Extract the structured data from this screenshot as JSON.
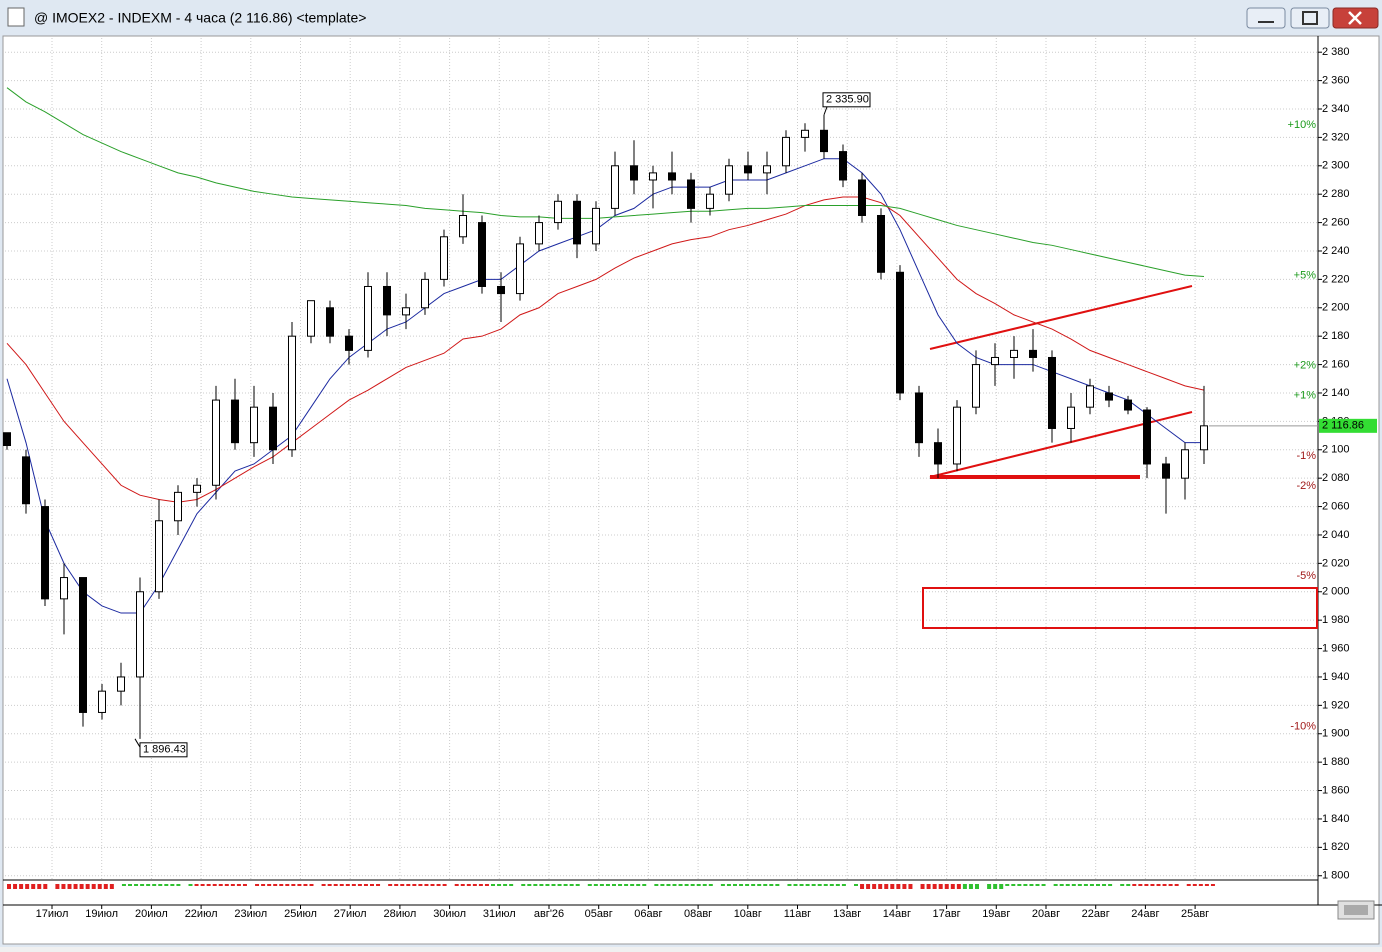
{
  "window": {
    "title": "@ IMOEX2 - INDEXM - 4 часа (2 116.86) <template>"
  },
  "chart_data": {
    "type": "candlestick",
    "candles": [
      [
        2112,
        2112,
        2100,
        2103
      ],
      [
        2095,
        2100,
        2055,
        2062
      ],
      [
        2060,
        2065,
        1990,
        1995
      ],
      [
        1995,
        2020,
        1970,
        2010
      ],
      [
        2010,
        2010,
        1905,
        1915
      ],
      [
        1915,
        1935,
        1910,
        1930
      ],
      [
        1930,
        1950,
        1920,
        1940
      ],
      [
        1940,
        2010,
        1896.43,
        2000
      ],
      [
        2000,
        2065,
        1995,
        2050
      ],
      [
        2050,
        2075,
        2040,
        2070
      ],
      [
        2070,
        2080,
        2060,
        2075
      ],
      [
        2075,
        2145,
        2065,
        2135
      ],
      [
        2135,
        2150,
        2100,
        2105
      ],
      [
        2105,
        2145,
        2095,
        2130
      ],
      [
        2130,
        2140,
        2090,
        2100
      ],
      [
        2100,
        2190,
        2095,
        2180
      ],
      [
        2180,
        2205,
        2175,
        2205
      ],
      [
        2200,
        2205,
        2175,
        2180
      ],
      [
        2180,
        2185,
        2160,
        2170
      ],
      [
        2170,
        2225,
        2165,
        2215
      ],
      [
        2215,
        2225,
        2180,
        2195
      ],
      [
        2195,
        2210,
        2185,
        2200
      ],
      [
        2200,
        2225,
        2195,
        2220
      ],
      [
        2220,
        2255,
        2215,
        2250
      ],
      [
        2250,
        2280,
        2245,
        2265
      ],
      [
        2260,
        2265,
        2210,
        2215
      ],
      [
        2215,
        2225,
        2190,
        2210
      ],
      [
        2210,
        2250,
        2205,
        2245
      ],
      [
        2245,
        2265,
        2240,
        2260
      ],
      [
        2260,
        2280,
        2255,
        2275
      ],
      [
        2275,
        2280,
        2235,
        2245
      ],
      [
        2245,
        2275,
        2240,
        2270
      ],
      [
        2270,
        2310,
        2265,
        2300
      ],
      [
        2300,
        2318,
        2280,
        2290
      ],
      [
        2290,
        2300,
        2270,
        2295
      ],
      [
        2295,
        2310,
        2280,
        2290
      ],
      [
        2290,
        2295,
        2260,
        2270
      ],
      [
        2270,
        2285,
        2265,
        2280
      ],
      [
        2280,
        2305,
        2275,
        2300
      ],
      [
        2300,
        2310,
        2290,
        2295
      ],
      [
        2295,
        2310,
        2280,
        2300
      ],
      [
        2300,
        2325,
        2295,
        2320
      ],
      [
        2320,
        2330,
        2310,
        2325
      ],
      [
        2325,
        2335.9,
        2305,
        2310
      ],
      [
        2310,
        2315,
        2285,
        2290
      ],
      [
        2290,
        2295,
        2260,
        2265
      ],
      [
        2265,
        2270,
        2220,
        2225
      ],
      [
        2225,
        2230,
        2135,
        2140
      ],
      [
        2140,
        2145,
        2095,
        2105
      ],
      [
        2105,
        2115,
        2080,
        2090
      ],
      [
        2090,
        2135,
        2085,
        2130
      ],
      [
        2130,
        2170,
        2125,
        2160
      ],
      [
        2160,
        2175,
        2145,
        2165
      ],
      [
        2165,
        2180,
        2150,
        2170
      ],
      [
        2170,
        2185,
        2155,
        2165
      ],
      [
        2165,
        2170,
        2105,
        2115
      ],
      [
        2115,
        2140,
        2105,
        2130
      ],
      [
        2130,
        2150,
        2125,
        2145
      ],
      [
        2140,
        2145,
        2130,
        2135
      ],
      [
        2135,
        2138,
        2125,
        2128
      ],
      [
        2128,
        2130,
        2080,
        2090
      ],
      [
        2090,
        2095,
        2055,
        2080
      ],
      [
        2080,
        2105,
        2065,
        2100
      ],
      [
        2100,
        2145,
        2090,
        2116.86
      ]
    ],
    "series": [
      {
        "color": "#1c2aa0",
        "values": [
          2150,
          2105,
          2050,
          2020,
          2000,
          1990,
          1985,
          1985,
          2005,
          2030,
          2055,
          2070,
          2085,
          2090,
          2100,
          2110,
          2130,
          2150,
          2165,
          2175,
          2185,
          2190,
          2200,
          2210,
          2215,
          2220,
          2220,
          2230,
          2240,
          2245,
          2250,
          2255,
          2265,
          2270,
          2280,
          2285,
          2285,
          2285,
          2290,
          2290,
          2290,
          2295,
          2300,
          2305,
          2305,
          2295,
          2280,
          2255,
          2225,
          2195,
          2175,
          2165,
          2160,
          2160,
          2160,
          2155,
          2150,
          2145,
          2140,
          2135,
          2125,
          2115,
          2105,
          2105
        ]
      },
      {
        "color": "#d01818",
        "values": [
          2175,
          2160,
          2140,
          2120,
          2105,
          2090,
          2075,
          2068,
          2065,
          2063,
          2065,
          2072,
          2080,
          2088,
          2095,
          2105,
          2115,
          2125,
          2135,
          2142,
          2150,
          2158,
          2163,
          2168,
          2178,
          2180,
          2185,
          2195,
          2200,
          2210,
          2215,
          2220,
          2228,
          2235,
          2240,
          2245,
          2248,
          2250,
          2255,
          2258,
          2262,
          2266,
          2272,
          2276,
          2278,
          2278,
          2274,
          2265,
          2250,
          2235,
          2220,
          2210,
          2203,
          2195,
          2190,
          2185,
          2178,
          2170,
          2165,
          2160,
          2155,
          2150,
          2145,
          2142
        ]
      },
      {
        "color": "#2aa02a",
        "values": [
          2355,
          2345,
          2338,
          2330,
          2322,
          2316,
          2310,
          2305,
          2300,
          2295,
          2292,
          2288,
          2285,
          2282,
          2280,
          2278,
          2277,
          2276,
          2275,
          2274,
          2273,
          2272,
          2270,
          2269,
          2268,
          2267,
          2265,
          2264,
          2264,
          2263,
          2263,
          2263,
          2264,
          2265,
          2266,
          2267,
          2268,
          2268,
          2269,
          2270,
          2270,
          2271,
          2272,
          2272,
          2272,
          2272,
          2272,
          2270,
          2266,
          2262,
          2258,
          2255,
          2252,
          2249,
          2246,
          2244,
          2241,
          2238,
          2235,
          2232,
          2229,
          2226,
          2223,
          2222
        ]
      }
    ],
    "x_labels": [
      "17июл",
      "19июл",
      "20июл",
      "22июл",
      "23июл",
      "25июл",
      "27июл",
      "28июл",
      "30июл",
      "31июл",
      "авг'26",
      "05авг",
      "06авг",
      "08авг",
      "10авг",
      "11авг",
      "13авг",
      "14авг",
      "17авг",
      "19авг",
      "20авг",
      "22авг",
      "24авг",
      "25авг"
    ],
    "ylim": [
      1797,
      2390
    ],
    "yticks": [
      {
        "value": 1800,
        "label": "1 800"
      },
      {
        "value": 1820,
        "label": "1 820"
      },
      {
        "value": 1840,
        "label": "1 840"
      },
      {
        "value": 1860,
        "label": "1 860"
      },
      {
        "value": 1880,
        "label": "1 880"
      },
      {
        "value": 1900,
        "label": "1 900"
      },
      {
        "value": 1920,
        "label": "1 920"
      },
      {
        "value": 1940,
        "label": "1 940"
      },
      {
        "value": 1960,
        "label": "1 960"
      },
      {
        "value": 1980,
        "label": "1 980"
      },
      {
        "value": 2000,
        "label": "2 000"
      },
      {
        "value": 2020,
        "label": "2 020"
      },
      {
        "value": 2040,
        "label": "2 040"
      },
      {
        "value": 2060,
        "label": "2 060"
      },
      {
        "value": 2080,
        "label": "2 080"
      },
      {
        "value": 2100,
        "label": "2 100"
      },
      {
        "value": 2120,
        "label": "2 120"
      },
      {
        "value": 2140,
        "label": "2 140"
      },
      {
        "value": 2160,
        "label": "2 160"
      },
      {
        "value": 2180,
        "label": "2 180"
      },
      {
        "value": 2200,
        "label": "2 200"
      },
      {
        "value": 2220,
        "label": "2 220"
      },
      {
        "value": 2240,
        "label": "2 240"
      },
      {
        "value": 2260,
        "label": "2 260"
      },
      {
        "value": 2280,
        "label": "2 280"
      },
      {
        "value": 2300,
        "label": "2 300"
      },
      {
        "value": 2320,
        "label": "2 320"
      },
      {
        "value": 2340,
        "label": "2 340"
      },
      {
        "value": 2360,
        "label": "2 360"
      },
      {
        "value": 2380,
        "label": "2 380"
      }
    ],
    "grid": true,
    "percent_levels": [
      {
        "value": 10,
        "label": "+10%"
      },
      {
        "value": 5,
        "label": "+5%"
      },
      {
        "value": 2,
        "label": "+2%"
      },
      {
        "value": 1,
        "label": "+1%"
      },
      {
        "value": -1,
        "label": "-1%"
      },
      {
        "value": -2,
        "label": "-2%"
      },
      {
        "value": -5,
        "label": "-5%"
      },
      {
        "value": -10,
        "label": "-10%"
      }
    ],
    "high_tag": {
      "value": 2335.9,
      "label": "2 335.90"
    },
    "low_tag": {
      "value": 1896.43,
      "label": "1 896.43"
    },
    "last_price": {
      "value": 2116.86,
      "label": "2 116.86"
    }
  }
}
